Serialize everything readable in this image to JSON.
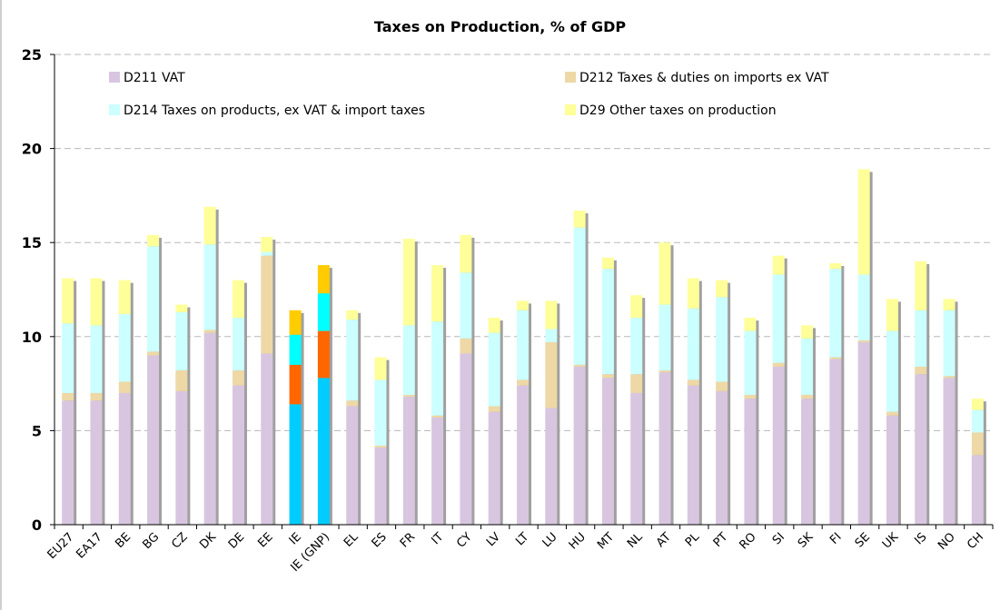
{
  "chart_data": {
    "type": "bar",
    "stacked": true,
    "title": "Taxes on Production, % of GDP",
    "xlabel": "",
    "ylabel": "",
    "ylim": [
      0,
      25
    ],
    "yticks": [
      0,
      5,
      10,
      15,
      20,
      25
    ],
    "grid": true,
    "legend_position": "top",
    "categories": [
      "EU27",
      "EA17",
      "BE",
      "BG",
      "CZ",
      "DK",
      "DE",
      "EE",
      "IE",
      "IE (GNP)",
      "EL",
      "ES",
      "FR",
      "IT",
      "CY",
      "LV",
      "LT",
      "LU",
      "HU",
      "MT",
      "NL",
      "AT",
      "PL",
      "PT",
      "RO",
      "SI",
      "SK",
      "FI",
      "SE",
      "UK",
      "IS",
      "NO",
      "CH"
    ],
    "series": [
      {
        "name": "D211 VAT",
        "color": "#d8c6e0",
        "values": [
          6.6,
          6.6,
          7.0,
          9.0,
          7.1,
          10.2,
          7.4,
          9.1,
          6.4,
          7.8,
          6.3,
          4.1,
          6.8,
          5.7,
          9.1,
          6.0,
          7.4,
          6.2,
          8.4,
          7.8,
          7.0,
          8.1,
          7.4,
          7.1,
          6.7,
          8.4,
          6.7,
          8.8,
          9.7,
          5.8,
          8.0,
          7.8,
          3.7
        ]
      },
      {
        "name": "D212 Taxes & duties on imports ex VAT",
        "color": "#eed8a6",
        "values": [
          0.4,
          0.4,
          0.6,
          0.2,
          1.1,
          0.15,
          0.8,
          5.2,
          2.1,
          2.5,
          0.3,
          0.1,
          0.1,
          0.1,
          0.8,
          0.3,
          0.3,
          3.5,
          0.1,
          0.2,
          1.0,
          0.1,
          0.3,
          0.5,
          0.2,
          0.2,
          0.2,
          0.1,
          0.1,
          0.2,
          0.4,
          0.1,
          1.2
        ]
      },
      {
        "name": "D214 Taxes on products, ex VAT & import taxes",
        "color": "#ccffff",
        "values": [
          3.7,
          3.6,
          3.6,
          5.6,
          3.1,
          4.55,
          2.8,
          0.2,
          1.6,
          2.0,
          4.3,
          3.5,
          3.7,
          5.0,
          3.5,
          3.9,
          3.7,
          0.7,
          7.3,
          5.6,
          3.0,
          3.5,
          3.8,
          4.5,
          3.4,
          4.7,
          3.0,
          4.7,
          3.5,
          4.3,
          3.0,
          3.5,
          1.2
        ]
      },
      {
        "name": "D29 Other taxes on production",
        "color": "#ffff99",
        "values": [
          2.4,
          2.5,
          1.8,
          0.6,
          0.4,
          2.0,
          2.0,
          0.8,
          1.3,
          1.5,
          0.5,
          1.2,
          4.6,
          3.0,
          2.0,
          0.8,
          0.5,
          1.5,
          0.9,
          0.6,
          1.2,
          3.3,
          1.6,
          0.9,
          0.7,
          1.0,
          0.7,
          0.3,
          5.6,
          1.7,
          2.6,
          0.6,
          0.6
        ]
      }
    ],
    "highlight": {
      "categories": [
        "IE",
        "IE (GNP)"
      ],
      "colors": [
        "#00ccff",
        "#ff6600",
        "#00ffff",
        "#ffcc00"
      ]
    },
    "legend": [
      {
        "label": "D211 VAT",
        "color": "#d8c6e0"
      },
      {
        "label": "D212 Taxes & duties on imports ex VAT",
        "color": "#eed8a6"
      },
      {
        "label": "D214 Taxes on products, ex VAT & import taxes",
        "color": "#ccffff"
      },
      {
        "label": "D29 Other taxes on production",
        "color": "#ffff99"
      }
    ]
  }
}
